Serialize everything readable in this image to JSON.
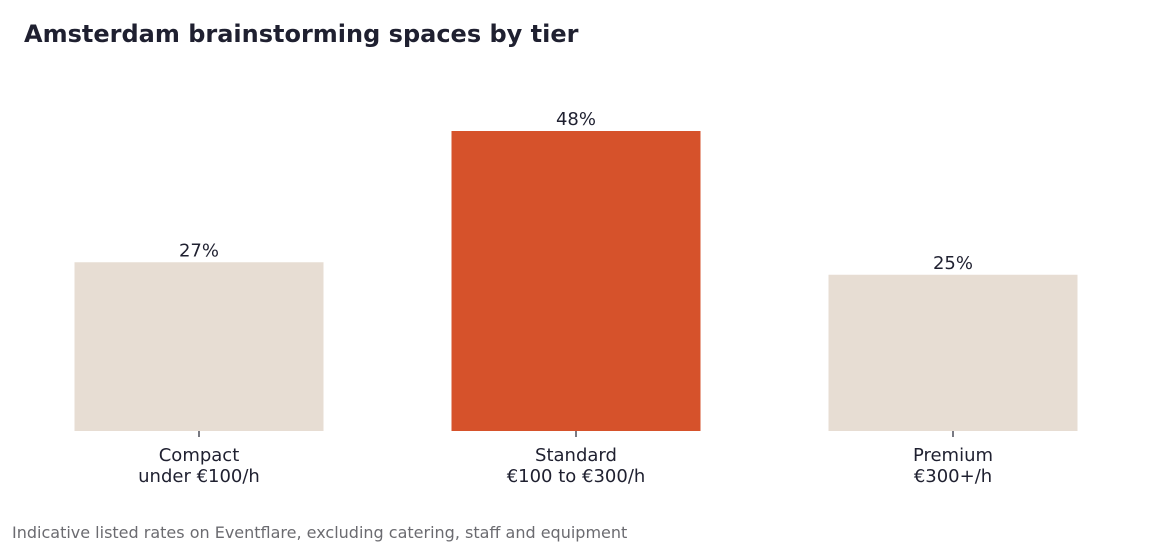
{
  "chart_data": {
    "type": "bar",
    "title": "Amsterdam brainstorming spaces by tier",
    "xlabel": "",
    "ylabel": "",
    "categories": [
      [
        "Compact",
        "under €100/h"
      ],
      [
        "Standard",
        "€100 to €300/h"
      ],
      [
        "Premium",
        "€300+/h"
      ]
    ],
    "values": [
      27,
      48,
      25
    ],
    "value_labels": [
      "27%",
      "48%",
      "25%"
    ],
    "unit": "%",
    "ylim": [
      0,
      48
    ],
    "grid": false,
    "legend": "none",
    "highlight_index": 1,
    "colors": {
      "base": "#e7ddd3",
      "highlight": "#d6522b",
      "text": "#1f2030"
    }
  },
  "footnote": "Indicative listed rates on Eventflare, excluding catering, staff and equipment"
}
